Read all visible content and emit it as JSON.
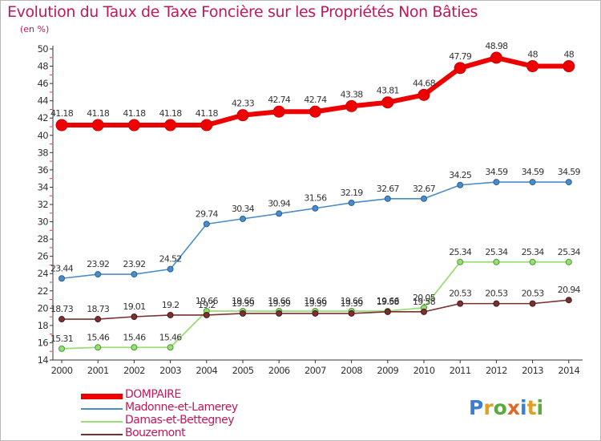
{
  "title": "Evolution du Taux de Taxe Foncière sur les Propriétés Non Bâties",
  "subtitle": "(en %)",
  "brand": {
    "letters": [
      "P",
      "r",
      "o",
      "x",
      "i",
      "t",
      "i"
    ],
    "colors": [
      "#3a7fd5",
      "#e2a023",
      "#5aaa3c",
      "#e2682a",
      "#3a7fd5",
      "#e2a023",
      "#5aaa3c"
    ]
  },
  "chart_data": {
    "type": "line",
    "title": "Evolution du Taux de Taxe Foncière sur les Propriétés Non Bâties",
    "ylabel": "(en %)",
    "xlabel": "",
    "x": [
      "2000",
      "2001",
      "2002",
      "2003",
      "2004",
      "2005",
      "2006",
      "2007",
      "2008",
      "2009",
      "2010",
      "2011",
      "2012",
      "2013",
      "2014"
    ],
    "yticks": [
      "14",
      "16",
      "18",
      "20",
      "22",
      "24",
      "26",
      "28",
      "30",
      "32",
      "34",
      "36",
      "38",
      "40",
      "42",
      "44",
      "46",
      "48",
      "50"
    ],
    "ylim": [
      14,
      50
    ],
    "grid": false,
    "legend": "bottom-left",
    "series": [
      {
        "name": "DOMPAIRE",
        "color": "#ee0000",
        "values": [
          41.18,
          41.18,
          41.18,
          41.18,
          41.18,
          42.33,
          42.74,
          42.74,
          43.38,
          43.81,
          44.68,
          47.79,
          48.98,
          48,
          48
        ],
        "labels": [
          "41.18",
          "41.18",
          "41.18",
          "41.18",
          "41.18",
          "42.33",
          "42.74",
          "42.74",
          "43.38",
          "43.81",
          "44.68",
          "47.79",
          "48.98",
          "48",
          "48"
        ]
      },
      {
        "name": "Madonne-et-Lamerey",
        "color": "#4a8cc8",
        "values": [
          23.44,
          23.92,
          23.92,
          24.52,
          29.74,
          30.34,
          30.94,
          31.56,
          32.19,
          32.67,
          32.67,
          34.25,
          34.59,
          34.59,
          34.59
        ],
        "labels": [
          "23.44",
          "23.92",
          "23.92",
          "24.52",
          "29.74",
          "30.34",
          "30.94",
          "31.56",
          "32.19",
          "32.67",
          "32.67",
          "34.25",
          "34.59",
          "34.59",
          "34.59"
        ]
      },
      {
        "name": "Damas-et-Bettegney",
        "color": "#99dd77",
        "values": [
          15.31,
          15.46,
          15.46,
          15.46,
          19.66,
          19.66,
          19.66,
          19.66,
          19.66,
          19.66,
          20.05,
          25.34,
          25.34,
          25.34,
          25.34
        ],
        "labels": [
          "15.31",
          "15.46",
          "15.46",
          "15.46",
          "19.66",
          "19.66",
          "19.66",
          "19.66",
          "19.66",
          "19.66",
          "20.05",
          "25.34",
          "25.34",
          "25.34",
          "25.34"
        ]
      },
      {
        "name": "Bouzemont",
        "color": "#7a3030",
        "values": [
          18.73,
          18.73,
          19.01,
          19.2,
          19.2,
          19.39,
          19.39,
          19.39,
          19.39,
          19.58,
          19.58,
          20.53,
          20.53,
          20.53,
          20.94
        ],
        "labels": [
          "18.73",
          "18.73",
          "19.01",
          "19.2",
          "19.2",
          "19.39",
          "19.39",
          "19.39",
          "19.39",
          "19.58",
          "19.58",
          "20.53",
          "20.53",
          "20.53",
          "20.94"
        ]
      }
    ]
  }
}
